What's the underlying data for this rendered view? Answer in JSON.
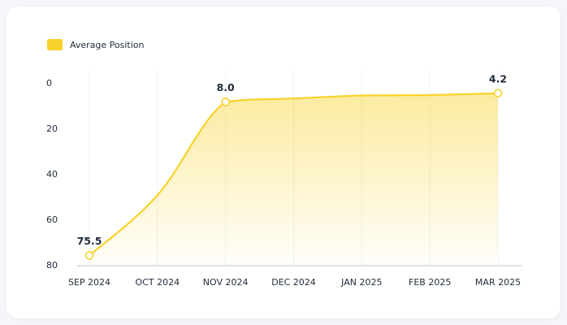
{
  "chart_data": {
    "type": "line",
    "categories": [
      "SEP 2024",
      "OCT 2024",
      "NOV 2024",
      "DEC 2024",
      "JAN 2025",
      "FEB 2025",
      "MAR 2025"
    ],
    "series": [
      {
        "name": "Average Position",
        "color": "#f8d22a",
        "values": [
          75.5,
          49,
          8.0,
          6.5,
          5.2,
          5.0,
          4.2
        ],
        "value_labels": [
          "75.5",
          null,
          "8.0",
          null,
          null,
          null,
          "4.2"
        ]
      }
    ],
    "ylim": [
      0,
      80
    ],
    "yticks": [
      0,
      20,
      40,
      60,
      80
    ],
    "y_inverted": true,
    "grid": true,
    "legend": "top-left",
    "area": true
  }
}
